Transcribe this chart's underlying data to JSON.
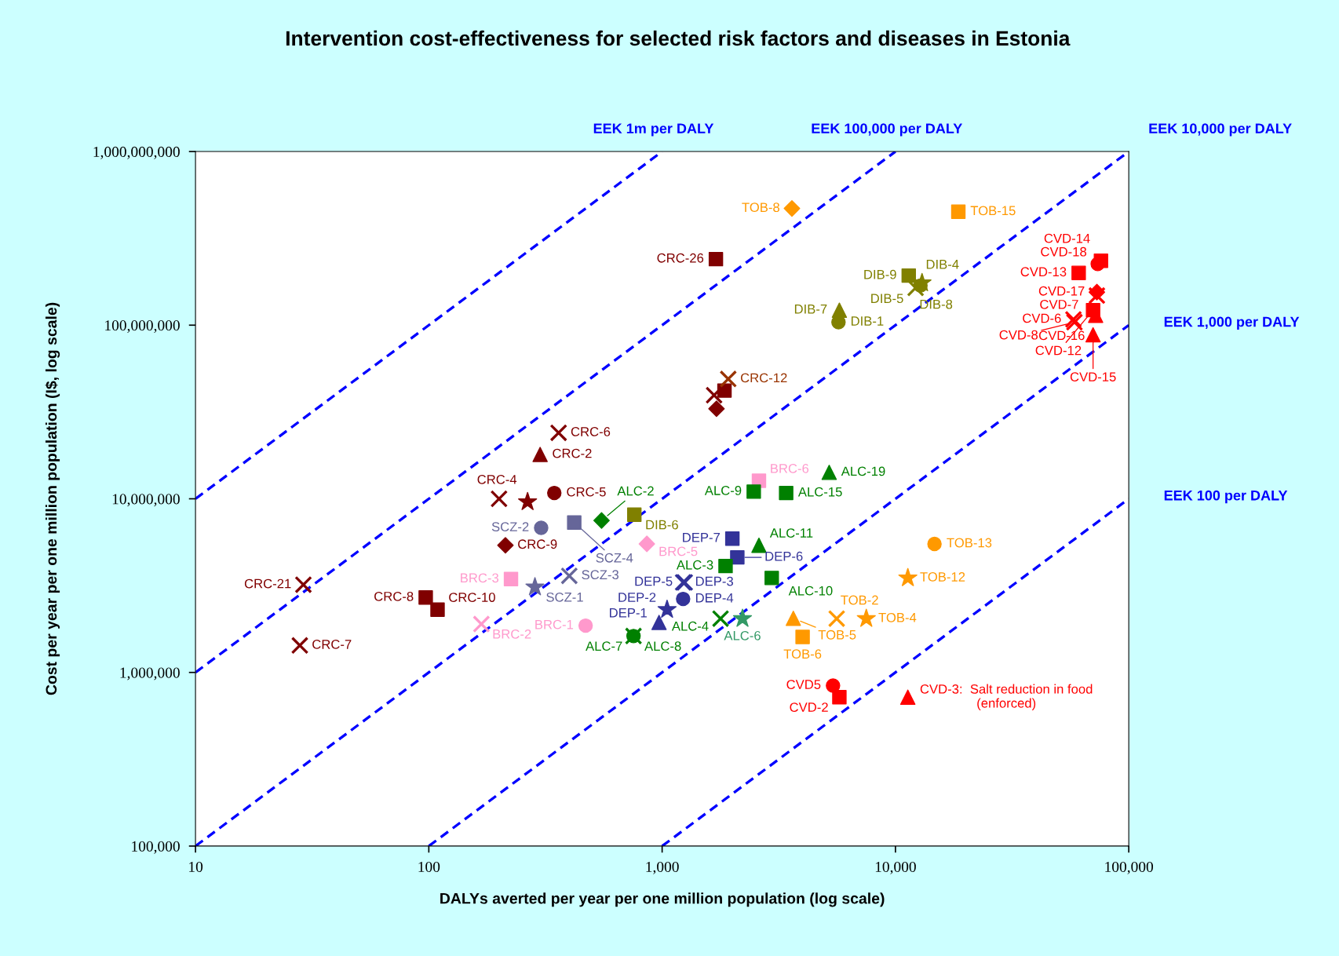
{
  "chart_data": {
    "type": "scatter",
    "title": "Intervention cost-effectiveness for selected risk factors and diseases in Estonia",
    "xlabel": "DALYs averted per year per one million population (log scale)",
    "ylabel": "Cost per year per one million population (I$, log scale)",
    "log": "xy",
    "xlim": [
      10,
      100000
    ],
    "ylim": [
      100000,
      1000000000
    ],
    "xticks": [
      10,
      100,
      {
        "value": 1000,
        "label": "1,000"
      },
      {
        "value": 10000,
        "label": "10,000"
      },
      {
        "value": 100000,
        "label": "100,000"
      }
    ],
    "yticks": [
      {
        "value": 100000,
        "label": "100,000"
      },
      {
        "value": 1000000,
        "label": "1,000,000"
      },
      {
        "value": 10000000,
        "label": "10,000,000"
      },
      {
        "value": 100000000,
        "label": "100,000,000"
      },
      {
        "value": 1000000000,
        "label": "1,000,000,000"
      }
    ],
    "series": [
      {
        "type": "line",
        "name": "EEK 1m per DALY",
        "color": "#0000ff",
        "line_style": "dashed",
        "x": [
          10,
          1000
        ],
        "values": [
          10000000,
          1000000000
        ]
      },
      {
        "type": "line",
        "name": "EEK 100,000 per DALY",
        "color": "#0000ff",
        "line_style": "dashed",
        "x": [
          10,
          10000
        ],
        "values": [
          1000000,
          1000000000
        ]
      },
      {
        "type": "line",
        "name": "EEK 10,000 per DALY",
        "color": "#0000ff",
        "line_style": "dashed",
        "x": [
          10,
          100000
        ],
        "values": [
          100000,
          1000000000
        ]
      },
      {
        "type": "line",
        "name": "EEK 1,000 per DALY",
        "color": "#0000ff",
        "line_style": "dashed",
        "x": [
          100,
          100000
        ],
        "values": [
          100000,
          100000000
        ]
      },
      {
        "type": "line",
        "name": "EEK 100 per DALY",
        "color": "#0000ff",
        "line_style": "dashed",
        "x": [
          1000,
          100000
        ],
        "values": [
          100000,
          10000000
        ]
      },
      {
        "color": "#800000",
        "marker": "square",
        "x": [
          1700,
          97,
          1850,
          109
        ],
        "values": [
          240000000,
          2700000,
          42000000,
          2300000
        ],
        "value_labels": [
          "CRC-26",
          "CRC-8",
          null,
          "CRC-10"
        ]
      },
      {
        "color": "#800000",
        "marker": "triangle",
        "x": [
          300
        ],
        "values": [
          18000000
        ],
        "value_labels": [
          "CRC-2"
        ]
      },
      {
        "color": "#800000",
        "marker": "circle",
        "x": [
          345
        ],
        "values": [
          10800000
        ],
        "value_labels": [
          "CRC-5"
        ]
      },
      {
        "color": "#800000",
        "marker": "diamond",
        "x": [
          213,
          1710
        ],
        "values": [
          5400000,
          33000000
        ],
        "value_labels": [
          "CRC-9",
          null
        ]
      },
      {
        "color": "#800000",
        "marker": "star",
        "x": [
          265
        ],
        "values": [
          9600000
        ],
        "value_labels": [
          "CRC-4"
        ]
      },
      {
        "color": "#800000",
        "marker": "cross",
        "x": [
          360,
          28,
          200,
          29,
          1670
        ],
        "values": [
          24000000,
          1430000,
          10000000,
          3200000,
          39500000
        ],
        "value_labels": [
          "CRC-6",
          "CRC-7",
          null,
          "CRC-21",
          null
        ]
      },
      {
        "color": "#993300",
        "marker": "cross",
        "x": [
          1920
        ],
        "values": [
          49000000
        ],
        "value_labels": [
          "CRC-12"
        ]
      },
      {
        "color": "#ff99cc",
        "marker": "square",
        "x": [
          2600,
          225
        ],
        "values": [
          12700000,
          3450000
        ],
        "value_labels": [
          "BRC-6",
          "BRC-3"
        ]
      },
      {
        "color": "#ff99cc",
        "marker": "diamond",
        "x": [
          860
        ],
        "values": [
          5500000
        ],
        "value_labels": [
          "BRC-5"
        ]
      },
      {
        "color": "#ff99cc",
        "marker": "cross",
        "x": [
          168
        ],
        "values": [
          1900000
        ],
        "value_labels": [
          "BRC-2"
        ]
      },
      {
        "color": "#ff99cc",
        "marker": "circle",
        "x": [
          470
        ],
        "values": [
          1860000
        ],
        "value_labels": [
          "BRC-1"
        ]
      },
      {
        "color": "#666699",
        "marker": "circle",
        "x": [
          303
        ],
        "values": [
          6800000
        ],
        "value_labels": [
          "SCZ-2"
        ]
      },
      {
        "color": "#666699",
        "marker": "square",
        "x": [
          420
        ],
        "values": [
          7300000
        ],
        "value_labels": [
          "SCZ-4"
        ]
      },
      {
        "color": "#666699",
        "marker": "cross",
        "x": [
          400
        ],
        "values": [
          3600000
        ],
        "value_labels": [
          "SCZ-3"
        ]
      },
      {
        "color": "#666699",
        "marker": "star",
        "x": [
          285
        ],
        "values": [
          3100000
        ],
        "value_labels": [
          "SCZ-1"
        ]
      },
      {
        "color": "#333399",
        "marker": "square",
        "x": [
          2000,
          2100
        ],
        "values": [
          5900000,
          4600000
        ],
        "value_labels": [
          "DEP-7",
          "DEP-6"
        ]
      },
      {
        "color": "#333399",
        "marker": "circle",
        "x": [
          1230
        ],
        "values": [
          2650000
        ],
        "value_labels": [
          "DEP-4"
        ]
      },
      {
        "color": "#333399",
        "marker": "cross",
        "x": [
          1230,
          1250
        ],
        "values": [
          3300000,
          3300000
        ],
        "value_labels": [
          "DEP-3",
          "DEP-5"
        ]
      },
      {
        "color": "#333399",
        "marker": "star",
        "x": [
          1050
        ],
        "values": [
          2300000
        ],
        "value_labels": [
          "DEP-2"
        ]
      },
      {
        "color": "#333399",
        "marker": "triangle",
        "x": [
          970
        ],
        "values": [
          1940000
        ],
        "value_labels": [
          "DEP-1"
        ]
      },
      {
        "color": "#008000",
        "marker": "triangle",
        "x": [
          5200,
          2600
        ],
        "values": [
          14200000,
          5400000
        ],
        "value_labels": [
          "ALC-19",
          "ALC-11"
        ]
      },
      {
        "color": "#008000",
        "marker": "square",
        "x": [
          2470,
          2950,
          3400,
          1870
        ],
        "values": [
          11000000,
          3500000,
          10800000,
          4100000
        ],
        "value_labels": [
          "ALC-9",
          "ALC-10",
          "ALC-15",
          "ALC-3"
        ]
      },
      {
        "color": "#008000",
        "marker": "diamond",
        "x": [
          550
        ],
        "values": [
          7500000
        ],
        "value_labels": [
          "ALC-2"
        ]
      },
      {
        "color": "#008000",
        "marker": "circle",
        "x": [
          754
        ],
        "values": [
          1620000
        ],
        "value_labels": [
          "ALC-8"
        ]
      },
      {
        "color": "#008000",
        "marker": "cross",
        "x": [
          754,
          1780
        ],
        "values": [
          1620000,
          2040000
        ],
        "value_labels": [
          "ALC-7",
          "ALC-4"
        ]
      },
      {
        "color": "#339966",
        "marker": "star",
        "x": [
          2210
        ],
        "values": [
          2040000
        ],
        "value_labels": [
          "ALC-6"
        ]
      },
      {
        "color": "#808000",
        "marker": "square",
        "x": [
          760,
          11400
        ],
        "values": [
          8100000,
          193000000
        ],
        "value_labels": [
          "DIB-6",
          "DIB-9"
        ]
      },
      {
        "color": "#808000",
        "marker": "circle",
        "x": [
          5700,
          12800
        ],
        "values": [
          104000000,
          169000000
        ],
        "value_labels": [
          "DIB-1",
          "DIB-5"
        ]
      },
      {
        "color": "#808000",
        "marker": "triangle",
        "x": [
          5750
        ],
        "values": [
          122000000
        ],
        "value_labels": [
          "DIB-7"
        ]
      },
      {
        "color": "#808000",
        "marker": "star",
        "x": [
          13000
        ],
        "values": [
          175000000
        ],
        "value_labels": [
          "DIB-4"
        ]
      },
      {
        "color": "#808000",
        "marker": "cross",
        "x": [
          12200
        ],
        "values": [
          164000000
        ],
        "value_labels": [
          "DIB-8"
        ]
      },
      {
        "color": "#ff9900",
        "marker": "diamond",
        "x": [
          3600
        ],
        "values": [
          470000000
        ],
        "value_labels": [
          "TOB-8"
        ]
      },
      {
        "color": "#ff9900",
        "marker": "square",
        "x": [
          18600,
          4000
        ],
        "values": [
          450000000,
          1600000
        ],
        "value_labels": [
          "TOB-15",
          "TOB-6"
        ]
      },
      {
        "color": "#ff9900",
        "marker": "circle",
        "x": [
          14700
        ],
        "values": [
          5500000
        ],
        "value_labels": [
          "TOB-13"
        ]
      },
      {
        "color": "#ff9900",
        "marker": "star",
        "x": [
          11300,
          7500
        ],
        "values": [
          3500000,
          2040000
        ],
        "value_labels": [
          "TOB-12",
          "TOB-4"
        ]
      },
      {
        "color": "#ff9900",
        "marker": "triangle",
        "x": [
          3650
        ],
        "values": [
          2050000
        ],
        "value_labels": [
          "TOB-5"
        ]
      },
      {
        "color": "#ff9900",
        "marker": "cross",
        "x": [
          5600
        ],
        "values": [
          2040000
        ],
        "value_labels": [
          "TOB-2"
        ]
      },
      {
        "color": "#ff0000",
        "marker": "square",
        "x": [
          61000,
          76000,
          70300,
          5750
        ],
        "values": [
          200000000,
          235000000,
          122000000,
          720000
        ],
        "value_labels": [
          "CVD-13",
          "CVD-14",
          "CVD-12",
          "CVD-2"
        ]
      },
      {
        "color": "#ff0000",
        "marker": "circle",
        "x": [
          73600,
          5400
        ],
        "values": [
          225000000,
          840000
        ],
        "value_labels": [
          "CVD-18",
          "CVD5"
        ]
      },
      {
        "color": "#ff0000",
        "marker": "diamond",
        "x": [
          73000
        ],
        "values": [
          155000000
        ],
        "value_labels": [
          "CVD-17"
        ]
      },
      {
        "color": "#ff0000",
        "marker": "cross",
        "x": [
          73000,
          57900,
          58500
        ],
        "values": [
          148000000,
          108000000,
          104000000
        ],
        "value_labels": [
          "CVD-7",
          "CVD-6",
          "CVD-8"
        ]
      },
      {
        "color": "#ff0000",
        "marker": "triangle",
        "x": [
          72100,
          70300,
          11300
        ],
        "values": [
          114000000,
          88000000,
          720000
        ],
        "value_labels": [
          "CVD-16",
          "CVD-15",
          "CVD-3:  Salt reduction in food\n(enforced)"
        ]
      }
    ]
  }
}
